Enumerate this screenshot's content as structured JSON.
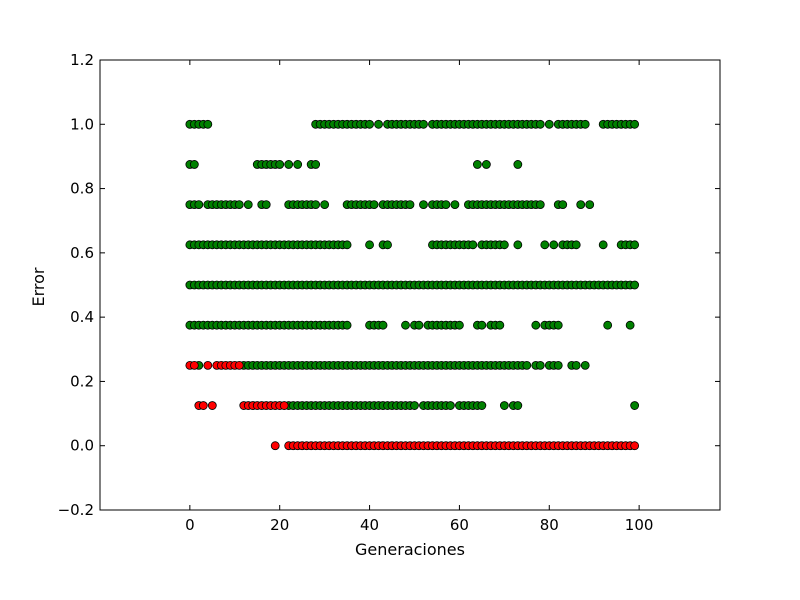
{
  "chart_data": {
    "type": "scatter",
    "title": "",
    "xlabel": "Generaciones",
    "ylabel": "Error",
    "xlim": [
      -20,
      118
    ],
    "ylim": [
      -0.2,
      1.2
    ],
    "xticks": [
      0,
      20,
      40,
      60,
      80,
      100
    ],
    "xtick_labels": [
      "0",
      "20",
      "40",
      "60",
      "80",
      "100"
    ],
    "yticks": [
      -0.2,
      0.0,
      0.2,
      0.4,
      0.6,
      0.8,
      1.0,
      1.2
    ],
    "ytick_labels": [
      "−0.2",
      "0.0",
      "0.2",
      "0.4",
      "0.6",
      "0.8",
      "1.0",
      "1.2"
    ],
    "grid": false,
    "legend": false,
    "colors": {
      "green": "#008000",
      "red": "#ff0000",
      "edge": "#000000"
    },
    "series": [
      {
        "color": "green",
        "points": [
          {
            "y": 1.0,
            "x": [
              0,
              1,
              2,
              3,
              4,
              28,
              29,
              30,
              31,
              32,
              33,
              34,
              35,
              36,
              37,
              38,
              39,
              40,
              42,
              44,
              45,
              46,
              47,
              48,
              49,
              50,
              51,
              52,
              54,
              55,
              56,
              57,
              58,
              59,
              60,
              61,
              62,
              63,
              64,
              65,
              66,
              67,
              68,
              69,
              70,
              71,
              72,
              73,
              74,
              75,
              76,
              77,
              78,
              80,
              82,
              83,
              84,
              85,
              86,
              87,
              88,
              92,
              93,
              94,
              95,
              96,
              97,
              98,
              99
            ]
          },
          {
            "y": 0.875,
            "x": [
              0,
              1,
              15,
              16,
              17,
              18,
              19,
              20,
              22,
              24,
              27,
              28,
              64,
              66,
              73
            ]
          },
          {
            "y": 0.75,
            "x": [
              0,
              1,
              2,
              4,
              5,
              6,
              7,
              8,
              9,
              10,
              11,
              13,
              16,
              17,
              22,
              23,
              24,
              25,
              26,
              27,
              28,
              30,
              35,
              36,
              37,
              38,
              39,
              40,
              41,
              43,
              44,
              45,
              46,
              47,
              48,
              49,
              52,
              54,
              55,
              56,
              57,
              59,
              62,
              63,
              64,
              65,
              66,
              67,
              68,
              69,
              70,
              71,
              72,
              73,
              74,
              75,
              76,
              77,
              78,
              82,
              83,
              87,
              89
            ]
          },
          {
            "y": 0.625,
            "x": [
              0,
              1,
              2,
              3,
              4,
              5,
              6,
              7,
              8,
              9,
              10,
              11,
              12,
              13,
              14,
              15,
              16,
              17,
              18,
              19,
              20,
              21,
              22,
              23,
              24,
              25,
              26,
              27,
              28,
              29,
              30,
              31,
              32,
              33,
              34,
              35,
              40,
              43,
              44,
              54,
              55,
              56,
              57,
              58,
              59,
              60,
              61,
              62,
              63,
              65,
              66,
              67,
              68,
              69,
              70,
              73,
              79,
              81,
              83,
              84,
              85,
              86,
              92,
              96,
              97,
              98,
              99
            ]
          },
          {
            "y": 0.5,
            "x": [
              0,
              1,
              2,
              3,
              4,
              5,
              6,
              7,
              8,
              9,
              10,
              11,
              12,
              13,
              14,
              15,
              16,
              17,
              18,
              19,
              20,
              21,
              22,
              23,
              24,
              25,
              26,
              27,
              28,
              29,
              30,
              31,
              32,
              33,
              34,
              35,
              36,
              37,
              38,
              39,
              40,
              41,
              42,
              43,
              44,
              45,
              46,
              47,
              48,
              49,
              50,
              51,
              52,
              53,
              54,
              55,
              56,
              57,
              58,
              59,
              60,
              61,
              62,
              63,
              64,
              65,
              66,
              67,
              68,
              69,
              70,
              71,
              72,
              73,
              74,
              75,
              76,
              77,
              78,
              79,
              80,
              81,
              82,
              83,
              84,
              85,
              86,
              87,
              88,
              89,
              90,
              91,
              92,
              93,
              94,
              95,
              96,
              97,
              98,
              99
            ]
          },
          {
            "y": 0.375,
            "x": [
              0,
              1,
              2,
              3,
              4,
              5,
              6,
              7,
              8,
              9,
              10,
              11,
              12,
              13,
              14,
              15,
              16,
              17,
              18,
              19,
              20,
              21,
              22,
              23,
              24,
              25,
              26,
              27,
              28,
              29,
              30,
              31,
              32,
              33,
              34,
              35,
              40,
              41,
              42,
              43,
              48,
              50,
              51,
              53,
              54,
              55,
              56,
              57,
              58,
              59,
              60,
              64,
              65,
              67,
              68,
              69,
              77,
              79,
              80,
              81,
              82,
              93,
              98
            ]
          },
          {
            "y": 0.25,
            "x": [
              2,
              12,
              13,
              14,
              15,
              16,
              17,
              18,
              19,
              20,
              21,
              22,
              23,
              24,
              25,
              26,
              27,
              28,
              29,
              30,
              31,
              32,
              33,
              34,
              35,
              36,
              37,
              38,
              39,
              40,
              41,
              42,
              43,
              44,
              45,
              46,
              47,
              48,
              49,
              50,
              51,
              52,
              53,
              54,
              55,
              56,
              57,
              58,
              59,
              60,
              61,
              62,
              63,
              64,
              65,
              66,
              67,
              68,
              69,
              70,
              71,
              72,
              73,
              74,
              75,
              77,
              78,
              80,
              81,
              82,
              85,
              86,
              88
            ]
          },
          {
            "y": 0.125,
            "x": [
              22,
              23,
              24,
              25,
              26,
              27,
              28,
              29,
              30,
              31,
              32,
              33,
              34,
              35,
              36,
              37,
              38,
              39,
              40,
              41,
              42,
              43,
              44,
              45,
              46,
              47,
              48,
              49,
              50,
              52,
              53,
              54,
              55,
              56,
              57,
              58,
              60,
              61,
              62,
              63,
              64,
              65,
              70,
              72,
              73,
              99
            ]
          }
        ]
      },
      {
        "color": "red",
        "points": [
          {
            "y": 0.25,
            "x": [
              0,
              1,
              4,
              6,
              7,
              8,
              9,
              10,
              11
            ]
          },
          {
            "y": 0.125,
            "x": [
              2,
              3,
              5,
              12,
              13,
              14,
              15,
              16,
              17,
              18,
              19,
              20,
              21
            ]
          },
          {
            "y": 0.0,
            "x": [
              19,
              22,
              23,
              24,
              25,
              26,
              27,
              28,
              29,
              30,
              31,
              32,
              33,
              34,
              35,
              36,
              37,
              38,
              39,
              40,
              41,
              42,
              43,
              44,
              45,
              46,
              47,
              48,
              49,
              50,
              51,
              52,
              53,
              54,
              55,
              56,
              57,
              58,
              59,
              60,
              61,
              62,
              63,
              64,
              65,
              66,
              67,
              68,
              69,
              70,
              71,
              72,
              73,
              74,
              75,
              76,
              77,
              78,
              79,
              80,
              81,
              82,
              83,
              84,
              85,
              86,
              87,
              88,
              89,
              90,
              91,
              92,
              93,
              94,
              95,
              96,
              97,
              98,
              99
            ]
          }
        ]
      }
    ]
  }
}
